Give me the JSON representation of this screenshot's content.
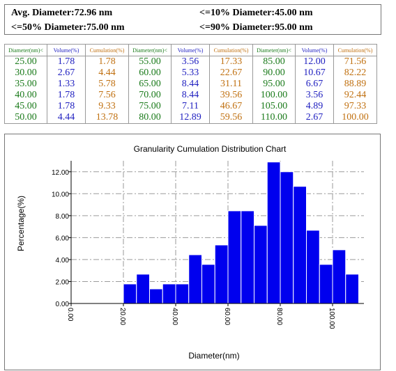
{
  "summary": {
    "avg": "Avg. Diameter:72.96 nm",
    "d10": "<=10% Diameter:45.00 nm",
    "d50": "<=50% Diameter:75.00 nm",
    "d90": "<=90% Diameter:95.00 nm"
  },
  "table": {
    "headers": [
      "Diameter(nm)<",
      "Volume(%)",
      "Cumulation(%)",
      "Diameter(nm)<",
      "Volume(%)",
      "Cumulation(%)",
      "Diameter(nm)<",
      "Volume(%)",
      "Cumulation(%)"
    ],
    "rows": [
      [
        "25.00",
        "1.78",
        "1.78",
        "55.00",
        "3.56",
        "17.33",
        "85.00",
        "12.00",
        "71.56"
      ],
      [
        "30.00",
        "2.67",
        "4.44",
        "60.00",
        "5.33",
        "22.67",
        "90.00",
        "10.67",
        "82.22"
      ],
      [
        "35.00",
        "1.33",
        "5.78",
        "65.00",
        "8.44",
        "31.11",
        "95.00",
        "6.67",
        "88.89"
      ],
      [
        "40.00",
        "1.78",
        "7.56",
        "70.00",
        "8.44",
        "39.56",
        "100.00",
        "3.56",
        "92.44"
      ],
      [
        "45.00",
        "1.78",
        "9.33",
        "75.00",
        "7.11",
        "46.67",
        "105.00",
        "4.89",
        "97.33"
      ],
      [
        "50.00",
        "4.44",
        "13.78",
        "80.00",
        "12.89",
        "59.56",
        "110.00",
        "2.67",
        "100.00"
      ]
    ]
  },
  "colors": {
    "diameter": "#1a7a1a",
    "volume": "#2020c0",
    "cumulation": "#c07010",
    "bar": "#0000ee"
  },
  "chart_data": {
    "type": "bar",
    "title": "Granularity Cumulation Distribution  Chart",
    "xlabel": "Diameter(nm)",
    "ylabel": "Percentage(%)",
    "xlim": [
      0,
      112
    ],
    "ylim": [
      0,
      13
    ],
    "x_ticks": [
      "0.00",
      "20.00",
      "40.00",
      "60.00",
      "80.00",
      "100.00"
    ],
    "y_ticks": [
      "0.00",
      "2.00",
      "4.00",
      "6.00",
      "8.00",
      "10.00",
      "12.00"
    ],
    "grid": true,
    "bin_width": 5,
    "x": [
      25,
      30,
      35,
      40,
      45,
      50,
      55,
      60,
      65,
      70,
      75,
      80,
      85,
      90,
      95,
      100,
      105,
      110
    ],
    "values": [
      1.78,
      2.67,
      1.33,
      1.78,
      1.78,
      4.44,
      3.56,
      5.33,
      8.44,
      8.44,
      7.11,
      12.89,
      12.0,
      10.67,
      6.67,
      3.56,
      4.89,
      2.67
    ]
  }
}
